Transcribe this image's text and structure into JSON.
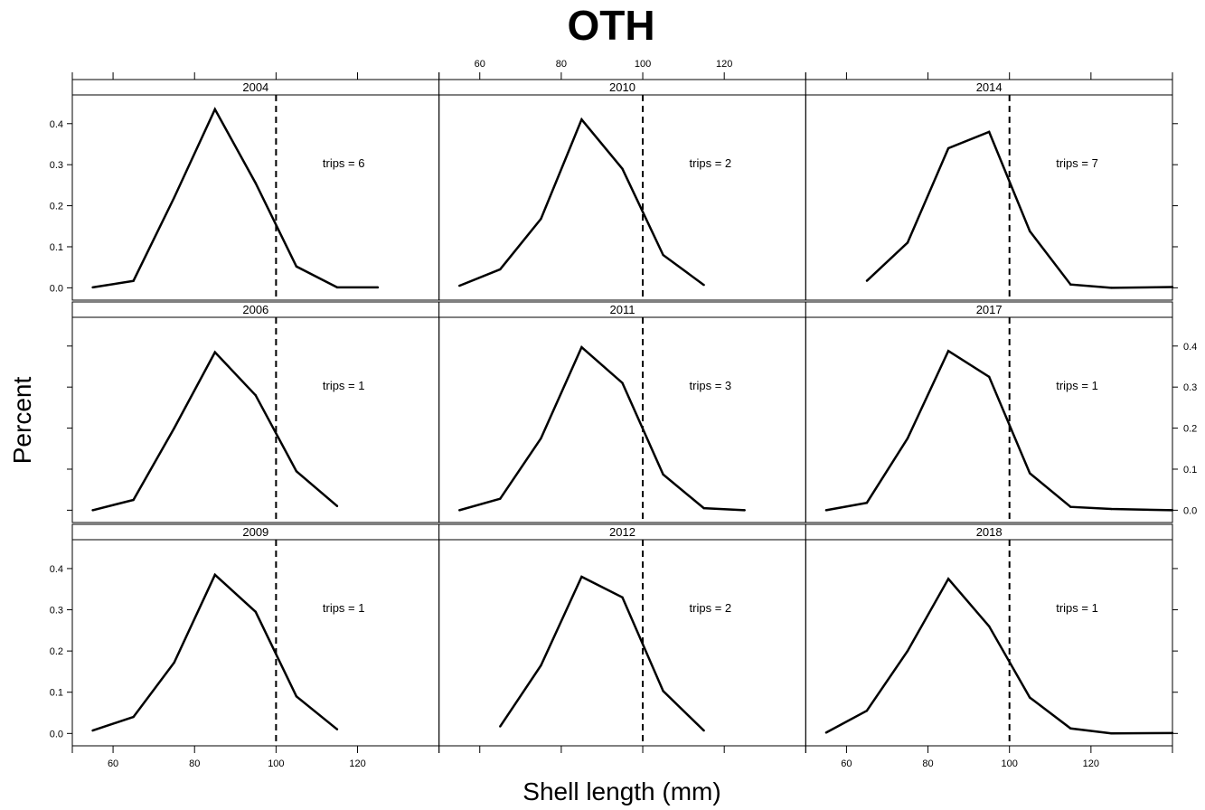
{
  "chart_data": {
    "type": "line",
    "title": "OTH",
    "xlabel": "Shell length (mm)",
    "ylabel": "Percent",
    "xlim": [
      50,
      140
    ],
    "ylim": [
      -0.03,
      0.47
    ],
    "x_ticks": [
      60,
      80,
      100,
      120
    ],
    "y_ticks": [
      0.0,
      0.1,
      0.2,
      0.3,
      0.4
    ],
    "x_tick_labels": [
      "60",
      "80",
      "100",
      "120"
    ],
    "y_tick_labels": [
      "0.0",
      "0.1",
      "0.2",
      "0.3",
      "0.4"
    ],
    "reference_line_x": 100,
    "layout": {
      "columns": 3,
      "rows": 3
    },
    "panels": [
      {
        "year": "2004",
        "annotation": "trips = 6",
        "x": [
          55,
          65,
          75,
          85,
          95,
          105,
          115,
          125
        ],
        "y": [
          0.001,
          0.017,
          0.22,
          0.435,
          0.255,
          0.052,
          0.001,
          0.001
        ]
      },
      {
        "year": "2010",
        "annotation": "trips = 2",
        "x": [
          55,
          65,
          75,
          85,
          95,
          105,
          115
        ],
        "y": [
          0.005,
          0.045,
          0.168,
          0.41,
          0.29,
          0.08,
          0.007
        ]
      },
      {
        "year": "2014",
        "annotation": "trips = 7",
        "x": [
          65,
          75,
          85,
          95,
          105,
          115,
          125,
          140
        ],
        "y": [
          0.017,
          0.11,
          0.34,
          0.38,
          0.138,
          0.008,
          0.0,
          0.002
        ]
      },
      {
        "year": "2006",
        "annotation": "trips = 1",
        "x": [
          55,
          65,
          75,
          85,
          95,
          105,
          115
        ],
        "y": [
          0.0,
          0.025,
          0.2,
          0.385,
          0.28,
          0.095,
          0.01
        ]
      },
      {
        "year": "2011",
        "annotation": "trips = 3",
        "x": [
          55,
          65,
          75,
          85,
          95,
          105,
          115,
          125
        ],
        "y": [
          0.0,
          0.028,
          0.175,
          0.397,
          0.31,
          0.087,
          0.005,
          0.0
        ]
      },
      {
        "year": "2017",
        "annotation": "trips = 1",
        "x": [
          55,
          65,
          75,
          85,
          95,
          105,
          115,
          125,
          140
        ],
        "y": [
          0.0,
          0.018,
          0.175,
          0.388,
          0.325,
          0.09,
          0.008,
          0.003,
          0.0
        ]
      },
      {
        "year": "2009",
        "annotation": "trips = 1",
        "x": [
          55,
          65,
          75,
          85,
          95,
          105,
          115
        ],
        "y": [
          0.007,
          0.04,
          0.172,
          0.385,
          0.295,
          0.09,
          0.01
        ]
      },
      {
        "year": "2012",
        "annotation": "trips = 2",
        "x": [
          65,
          75,
          85,
          95,
          105,
          115
        ],
        "y": [
          0.017,
          0.165,
          0.38,
          0.33,
          0.103,
          0.007
        ]
      },
      {
        "year": "2018",
        "annotation": "trips = 1",
        "x": [
          55,
          65,
          75,
          85,
          95,
          105,
          115,
          125,
          140
        ],
        "y": [
          0.002,
          0.055,
          0.2,
          0.375,
          0.26,
          0.087,
          0.012,
          0.0,
          0.001
        ]
      }
    ]
  }
}
